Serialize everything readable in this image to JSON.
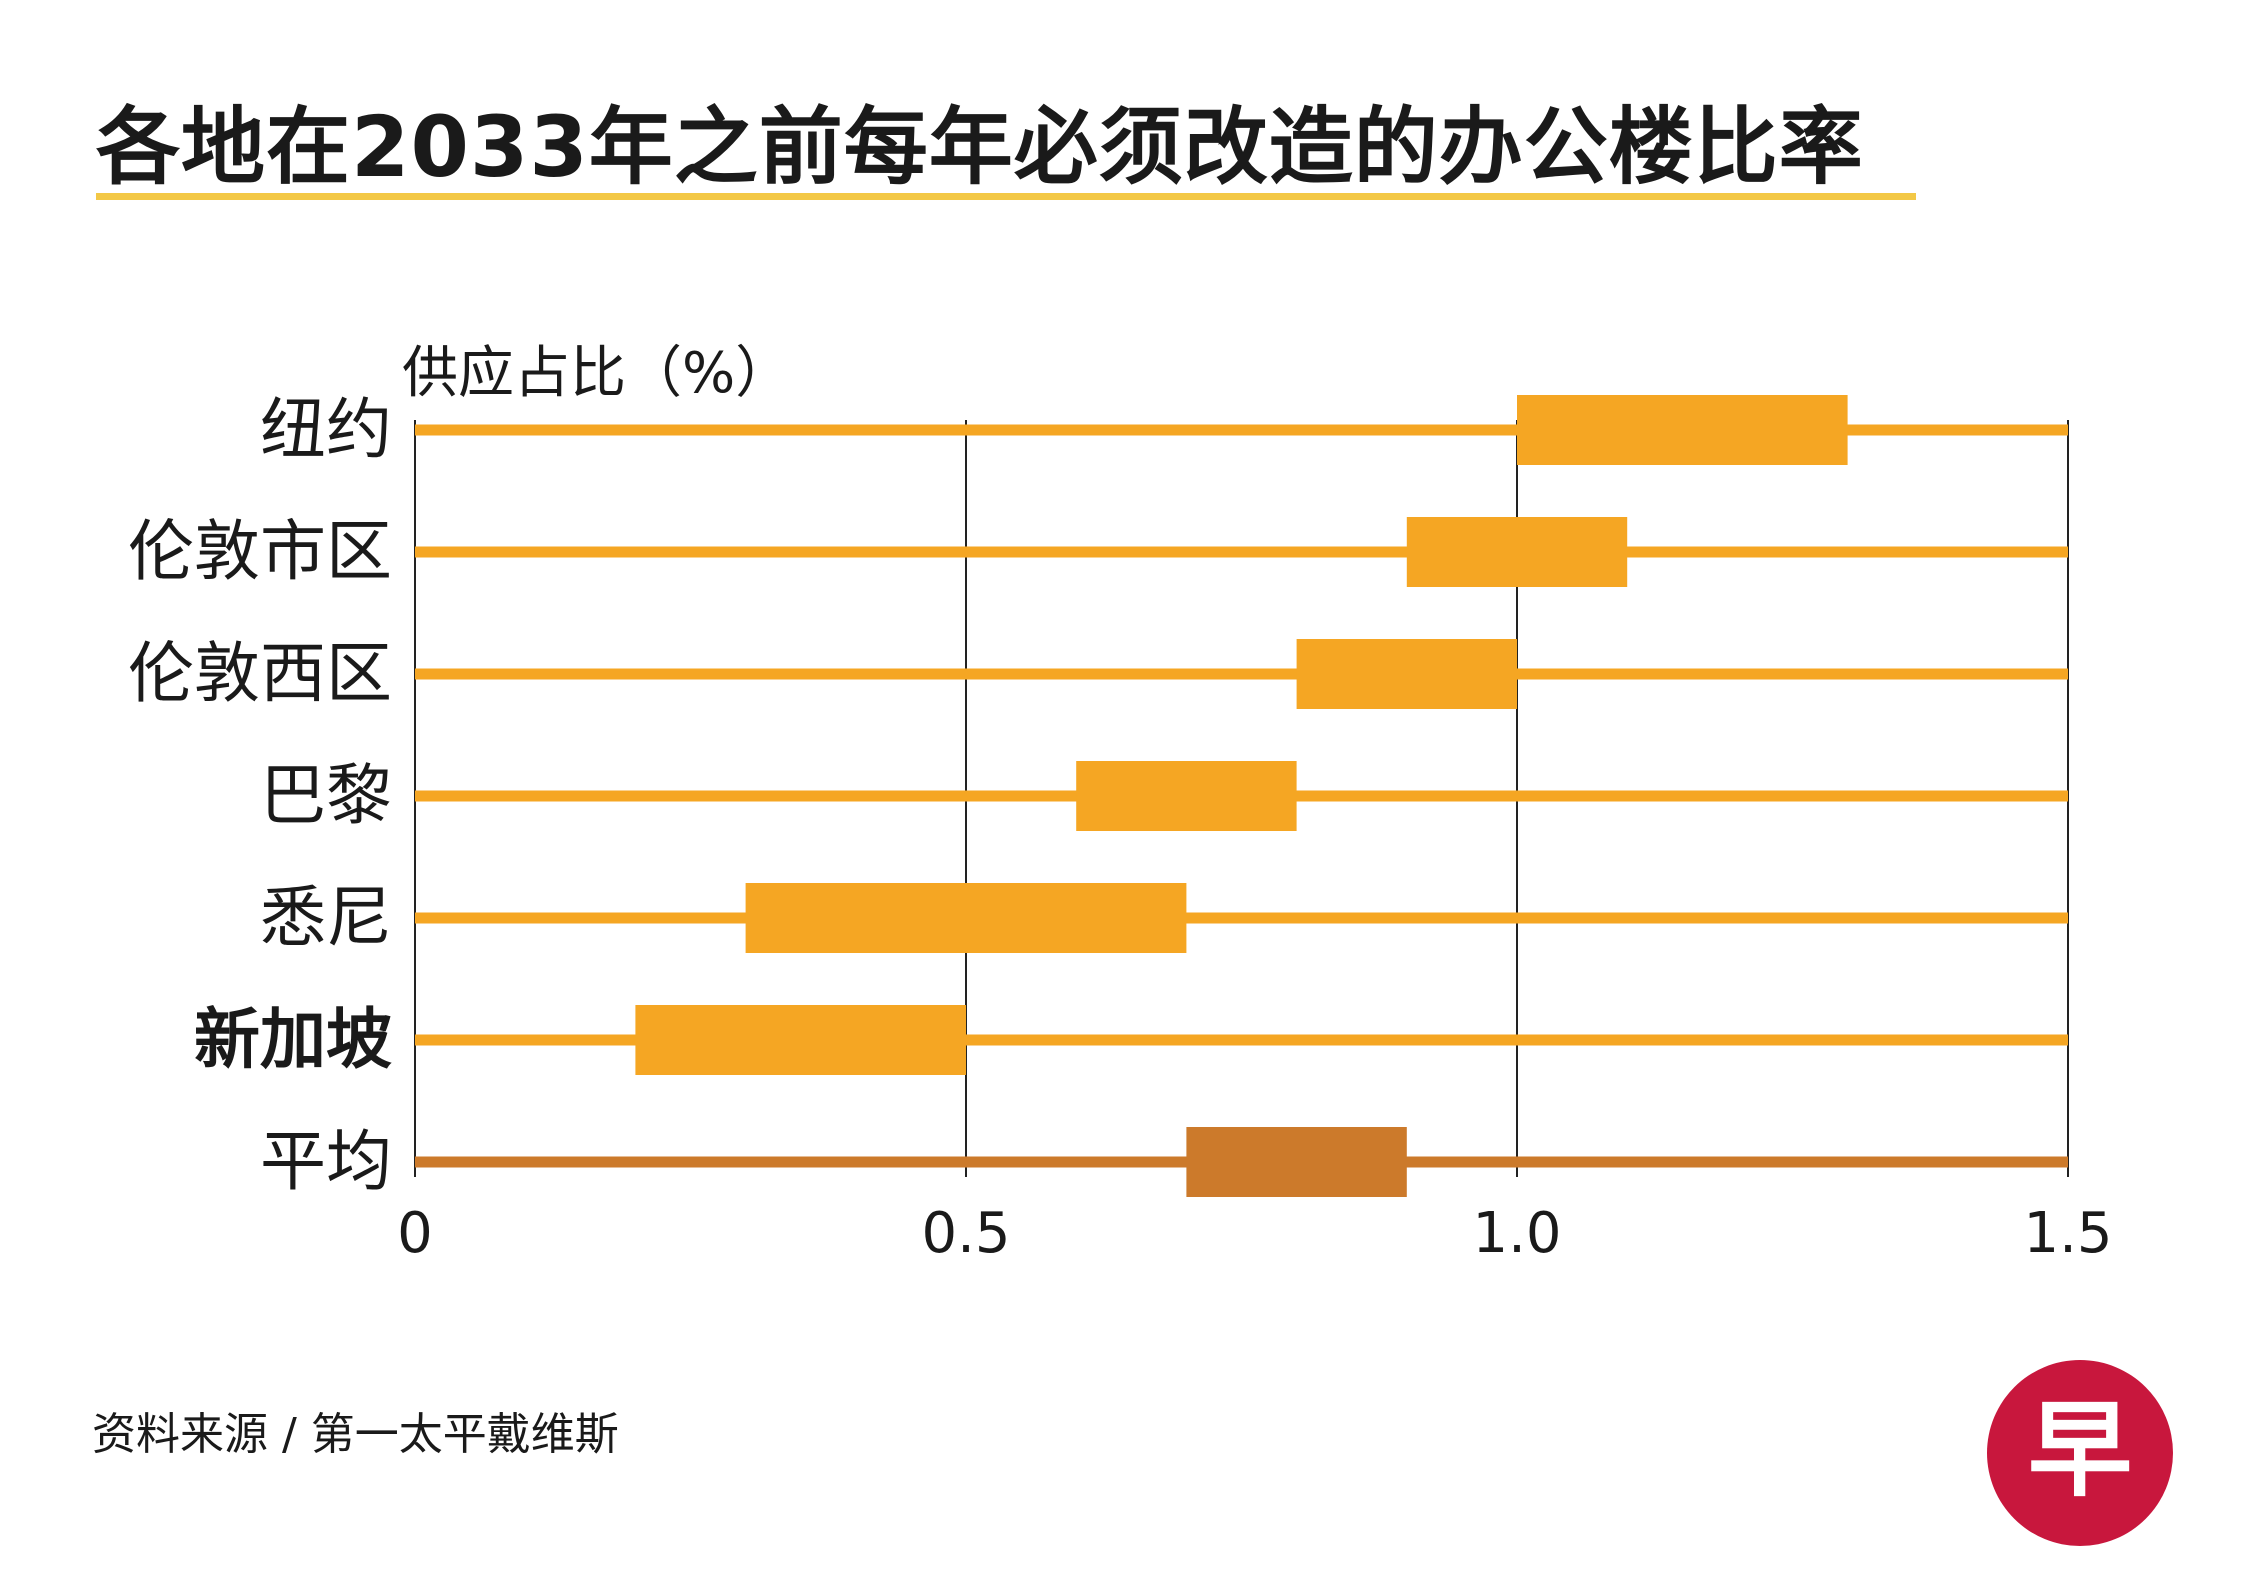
{
  "title": "各地在2033年之前每年必须改造的办公楼比率",
  "source": "资料来源 / 第一太平戴维斯",
  "logo": {
    "glyph": "早",
    "color": "#c8173d"
  },
  "colors": {
    "bar": "#f5a623",
    "average": "#cc7a2b",
    "grid": "#222222",
    "title_underline": "#f3c846"
  },
  "chart_data": {
    "type": "bar",
    "subtype": "horizontal-range",
    "ylabel": "供应占比（%）",
    "xlabel": "",
    "xlim": [
      0,
      1.5
    ],
    "x_ticks": [
      "0",
      "0.5",
      "1.0",
      "1.5"
    ],
    "x_tick_values": [
      0,
      0.5,
      1.0,
      1.5
    ],
    "grid": true,
    "categories": [
      "纽约",
      "伦敦市区",
      "伦敦西区",
      "巴黎",
      "悉尼",
      "新加坡",
      "平均"
    ],
    "bold_categories": [
      "新加坡"
    ],
    "series": [
      {
        "ranges": [
          [
            1.0,
            1.3
          ],
          [
            0.9,
            1.1
          ],
          [
            0.8,
            1.0
          ],
          [
            0.6,
            0.8
          ],
          [
            0.3,
            0.7
          ],
          [
            0.2,
            0.5
          ],
          [
            0.7,
            0.9
          ]
        ]
      }
    ]
  }
}
